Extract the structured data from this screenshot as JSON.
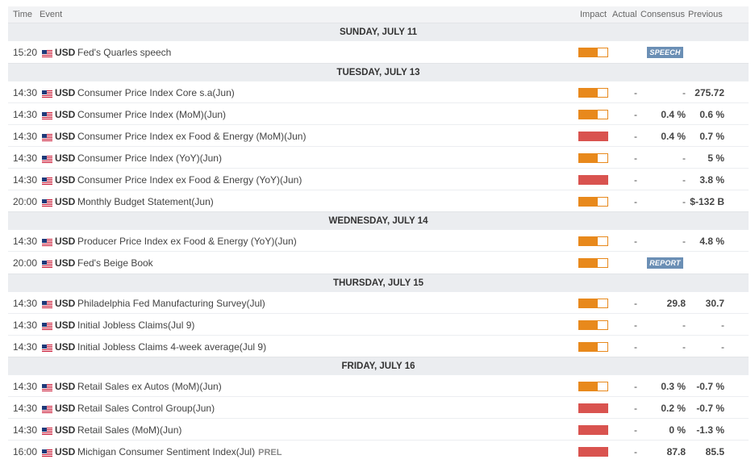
{
  "header": {
    "time": "Time",
    "event": "Event",
    "impact": "Impact",
    "actual": "Actual",
    "consensus": "Consensus",
    "previous": "Previous"
  },
  "colors": {
    "medium_impact": "#e8891c",
    "high_impact": "#d9534f",
    "badge": "#6b8fb5"
  },
  "days": [
    {
      "label": "SUNDAY, JULY 11",
      "rows": [
        {
          "time": "15:20",
          "currency": "USD",
          "event": "Fed's Quarles speech",
          "impact": "medium",
          "badge": "SPEECH"
        }
      ]
    },
    {
      "label": "TUESDAY, JULY 13",
      "rows": [
        {
          "time": "14:30",
          "currency": "USD",
          "event": "Consumer Price Index Core s.a(Jun)",
          "impact": "medium",
          "actual": "-",
          "consensus": "-",
          "previous": "275.72"
        },
        {
          "time": "14:30",
          "currency": "USD",
          "event": "Consumer Price Index (MoM)(Jun)",
          "impact": "medium",
          "actual": "-",
          "consensus": "0.4 %",
          "previous": "0.6 %"
        },
        {
          "time": "14:30",
          "currency": "USD",
          "event": "Consumer Price Index ex Food & Energy (MoM)(Jun)",
          "impact": "high",
          "actual": "-",
          "consensus": "0.4 %",
          "previous": "0.7 %"
        },
        {
          "time": "14:30",
          "currency": "USD",
          "event": "Consumer Price Index (YoY)(Jun)",
          "impact": "medium",
          "actual": "-",
          "consensus": "-",
          "previous": "5 %"
        },
        {
          "time": "14:30",
          "currency": "USD",
          "event": "Consumer Price Index ex Food & Energy (YoY)(Jun)",
          "impact": "high",
          "actual": "-",
          "consensus": "-",
          "previous": "3.8 %"
        },
        {
          "time": "20:00",
          "currency": "USD",
          "event": "Monthly Budget Statement(Jun)",
          "impact": "medium",
          "actual": "-",
          "consensus": "-",
          "previous": "$-132 B"
        }
      ]
    },
    {
      "label": "WEDNESDAY, JULY 14",
      "rows": [
        {
          "time": "14:30",
          "currency": "USD",
          "event": "Producer Price Index ex Food & Energy (YoY)(Jun)",
          "impact": "medium",
          "actual": "-",
          "consensus": "-",
          "previous": "4.8 %"
        },
        {
          "time": "20:00",
          "currency": "USD",
          "event": "Fed's Beige Book",
          "impact": "medium",
          "badge": "REPORT"
        }
      ]
    },
    {
      "label": "THURSDAY, JULY 15",
      "rows": [
        {
          "time": "14:30",
          "currency": "USD",
          "event": "Philadelphia Fed Manufacturing Survey(Jul)",
          "impact": "medium",
          "actual": "-",
          "consensus": "29.8",
          "previous": "30.7"
        },
        {
          "time": "14:30",
          "currency": "USD",
          "event": "Initial Jobless Claims(Jul 9)",
          "impact": "medium",
          "actual": "-",
          "consensus": "-",
          "previous": "-"
        },
        {
          "time": "14:30",
          "currency": "USD",
          "event": "Initial Jobless Claims 4-week average(Jul 9)",
          "impact": "medium",
          "actual": "-",
          "consensus": "-",
          "previous": "-"
        }
      ]
    },
    {
      "label": "FRIDAY, JULY 16",
      "rows": [
        {
          "time": "14:30",
          "currency": "USD",
          "event": "Retail Sales ex Autos (MoM)(Jun)",
          "impact": "medium",
          "actual": "-",
          "consensus": "0.3 %",
          "previous": "-0.7 %"
        },
        {
          "time": "14:30",
          "currency": "USD",
          "event": "Retail Sales Control Group(Jun)",
          "impact": "high",
          "actual": "-",
          "consensus": "0.2 %",
          "previous": "-0.7 %"
        },
        {
          "time": "14:30",
          "currency": "USD",
          "event": "Retail Sales (MoM)(Jun)",
          "impact": "high",
          "actual": "-",
          "consensus": "0 %",
          "previous": "-1.3 %"
        },
        {
          "time": "16:00",
          "currency": "USD",
          "event": "Michigan Consumer Sentiment Index(Jul)",
          "tag": "PREL",
          "impact": "high",
          "actual": "-",
          "consensus": "87.8",
          "previous": "85.5"
        }
      ]
    }
  ]
}
